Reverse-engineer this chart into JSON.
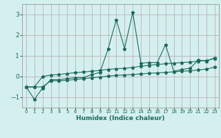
{
  "xlabel": "Humidex (Indice chaleur)",
  "bg_color": "#d4f0ee",
  "grid_color": "#c0b8c0",
  "line_color": "#1a6a5a",
  "x_data": [
    0,
    1,
    2,
    3,
    4,
    5,
    6,
    7,
    8,
    9,
    10,
    11,
    12,
    13,
    14,
    15,
    16,
    17,
    18,
    19,
    20,
    21,
    22,
    23
  ],
  "y_main": [
    -0.5,
    -1.1,
    -0.55,
    -0.15,
    -0.15,
    -0.1,
    -0.05,
    -0.05,
    0.1,
    0.2,
    1.35,
    2.75,
    1.35,
    3.1,
    0.65,
    0.68,
    0.68,
    1.55,
    0.25,
    0.35,
    0.4,
    0.8,
    0.75,
    0.9
  ],
  "y_upper": [
    -0.5,
    -0.5,
    -0.0,
    0.08,
    0.1,
    0.15,
    0.19,
    0.22,
    0.26,
    0.3,
    0.35,
    0.38,
    0.4,
    0.44,
    0.5,
    0.55,
    0.58,
    0.62,
    0.65,
    0.68,
    0.7,
    0.75,
    0.78,
    0.88
  ],
  "y_lower": [
    -0.5,
    -0.5,
    -0.5,
    -0.2,
    -0.2,
    -0.18,
    -0.14,
    -0.1,
    -0.06,
    -0.02,
    0.02,
    0.06,
    0.08,
    0.1,
    0.13,
    0.16,
    0.18,
    0.2,
    0.23,
    0.26,
    0.28,
    0.32,
    0.36,
    0.46
  ],
  "xlim": [
    -0.5,
    23.5
  ],
  "ylim": [
    -1.5,
    3.5
  ],
  "yticks": [
    -1,
    0,
    1,
    2,
    3
  ],
  "xticks": [
    0,
    1,
    2,
    3,
    4,
    5,
    6,
    7,
    8,
    9,
    10,
    11,
    12,
    13,
    14,
    15,
    16,
    17,
    18,
    19,
    20,
    21,
    22,
    23
  ],
  "marker": "*",
  "markersize": 3.5,
  "linewidth": 0.8
}
